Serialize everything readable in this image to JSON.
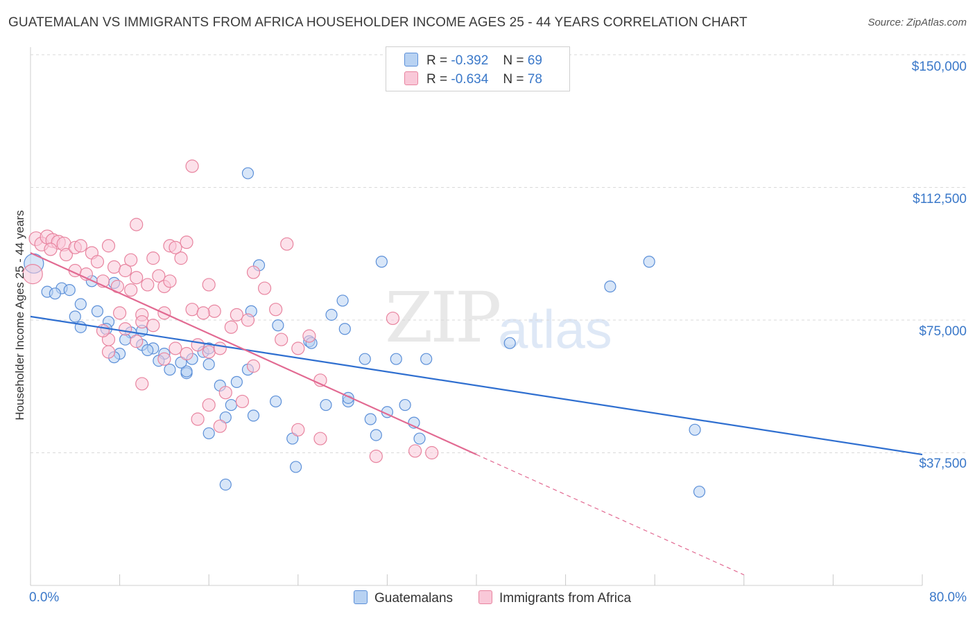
{
  "title": "GUATEMALAN VS IMMIGRANTS FROM AFRICA HOUSEHOLDER INCOME AGES 25 - 44 YEARS CORRELATION CHART",
  "source": "Source: ZipAtlas.com",
  "watermark": {
    "zip": "ZIP",
    "atlas": "atlas"
  },
  "colors": {
    "blue_fill": "#b8d2f2",
    "blue_stroke": "#5b8fd8",
    "blue_line": "#2f6fd0",
    "pink_fill": "#f9c8d8",
    "pink_stroke": "#e8849f",
    "pink_line": "#e26a92",
    "tick_text": "#3a78c9"
  },
  "legend": {
    "rows": [
      {
        "r_label": "R =",
        "r_value": "-0.392",
        "n_label": "N =",
        "n_value": "69"
      },
      {
        "r_label": "R =",
        "r_value": "-0.634",
        "n_label": "N =",
        "n_value": "78"
      }
    ]
  },
  "bottom_legend": {
    "series1": "Guatemalans",
    "series2": "Immigrants from Africa"
  },
  "axis": {
    "x_min_label": "0.0%",
    "x_max_label": "80.0%",
    "y_ticks": [
      "$150,000",
      "$112,500",
      "$75,000",
      "$37,500"
    ],
    "ylabel": "Householder Income Ages 25 - 44 years"
  },
  "chart_data": {
    "type": "scatter",
    "title": "GUATEMALAN VS IMMIGRANTS FROM AFRICA HOUSEHOLDER INCOME AGES 25 - 44 YEARS CORRELATION CHART",
    "xlabel": "",
    "ylabel": "Householder Income Ages 25 - 44 years",
    "xlim": [
      0,
      80
    ],
    "ylim": [
      0,
      154000
    ],
    "y_ticks": [
      37500,
      75000,
      112500,
      150000
    ],
    "series": [
      {
        "name": "Guatemalans",
        "r": -0.392,
        "n": 69,
        "trend": {
          "x": [
            0,
            80
          ],
          "y": [
            76000,
            37000
          ],
          "dashed_from": null
        },
        "points": [
          [
            0.3,
            91000,
            14
          ],
          [
            1.5,
            83000,
            8
          ],
          [
            2.8,
            84000,
            8
          ],
          [
            3.5,
            83500,
            8
          ],
          [
            2.2,
            82500,
            8
          ],
          [
            4.5,
            79500,
            8
          ],
          [
            5.5,
            86000,
            8
          ],
          [
            7.5,
            85500,
            8
          ],
          [
            6,
            77500,
            8
          ],
          [
            4,
            76000,
            8
          ],
          [
            7,
            74500,
            8
          ],
          [
            6.8,
            72500,
            8
          ],
          [
            4.5,
            73000,
            8
          ],
          [
            9,
            71500,
            8
          ],
          [
            8.5,
            69500,
            8
          ],
          [
            10,
            68000,
            8
          ],
          [
            11,
            67000,
            8
          ],
          [
            12,
            65500,
            8
          ],
          [
            10.5,
            66500,
            8
          ],
          [
            8,
            65500,
            8
          ],
          [
            7.5,
            64500,
            8
          ],
          [
            11.5,
            63500,
            8
          ],
          [
            12.5,
            61000,
            8
          ],
          [
            14,
            60000,
            8
          ],
          [
            15.5,
            66000,
            8
          ],
          [
            14.5,
            64000,
            8
          ],
          [
            16,
            62500,
            8
          ],
          [
            17,
            56500,
            8
          ],
          [
            18.5,
            57500,
            8
          ],
          [
            19.5,
            61000,
            8
          ],
          [
            18,
            51000,
            8
          ],
          [
            17.5,
            47500,
            8
          ],
          [
            16,
            43000,
            8
          ],
          [
            20,
            48000,
            8
          ],
          [
            22,
            52000,
            8
          ],
          [
            23.5,
            41500,
            8
          ],
          [
            23.8,
            33500,
            8
          ],
          [
            17.5,
            28500,
            8
          ],
          [
            20.5,
            90500,
            8
          ],
          [
            19.8,
            77500,
            8
          ],
          [
            22.2,
            73500,
            8
          ],
          [
            25,
            69000,
            8
          ],
          [
            25.2,
            68500,
            8
          ],
          [
            27,
            76500,
            8
          ],
          [
            26.5,
            51000,
            8
          ],
          [
            28.5,
            52000,
            8
          ],
          [
            28,
            80500,
            8
          ],
          [
            28.2,
            72500,
            8
          ],
          [
            30,
            64000,
            8
          ],
          [
            30.5,
            47000,
            8
          ],
          [
            31,
            42500,
            8
          ],
          [
            32,
            49000,
            8
          ],
          [
            31.5,
            91500,
            8
          ],
          [
            32.8,
            64000,
            8
          ],
          [
            33.6,
            51000,
            8
          ],
          [
            34.4,
            46000,
            8
          ],
          [
            34.9,
            41500,
            8
          ],
          [
            35.5,
            64000,
            8
          ],
          [
            28.5,
            53000,
            8
          ],
          [
            19.5,
            116500,
            8
          ],
          [
            43,
            68500,
            8
          ],
          [
            52,
            84500,
            8
          ],
          [
            55.5,
            91500,
            8
          ],
          [
            59.6,
            44000,
            8
          ],
          [
            60,
            26500,
            8
          ],
          [
            10,
            72000,
            8
          ],
          [
            14,
            60500,
            8
          ],
          [
            16,
            67000,
            8
          ],
          [
            13.5,
            63000,
            8
          ]
        ]
      },
      {
        "name": "Immigrants from Africa",
        "r": -0.634,
        "n": 78,
        "trend": {
          "x": [
            0,
            40
          ],
          "y": [
            94000,
            37000
          ],
          "dashed_to": {
            "x": 64,
            "y": 3000
          }
        },
        "points": [
          [
            0.2,
            88000,
            14
          ],
          [
            0.5,
            98000,
            10
          ],
          [
            1,
            96500,
            10
          ],
          [
            1.5,
            98500,
            10
          ],
          [
            2,
            97500,
            10
          ],
          [
            2.5,
            97000,
            10
          ],
          [
            3,
            96500,
            10
          ],
          [
            1.8,
            95000,
            9
          ],
          [
            3.2,
            93500,
            9
          ],
          [
            4,
            95500,
            9
          ],
          [
            4.5,
            96000,
            9
          ],
          [
            5.5,
            94000,
            9
          ],
          [
            4,
            89000,
            9
          ],
          [
            5,
            88000,
            9
          ],
          [
            6,
            91500,
            9
          ],
          [
            7,
            96000,
            9
          ],
          [
            7.5,
            90000,
            9
          ],
          [
            8.5,
            89000,
            9
          ],
          [
            6.5,
            86000,
            9
          ],
          [
            7.8,
            84500,
            9
          ],
          [
            9,
            83500,
            9
          ],
          [
            9.5,
            87000,
            9
          ],
          [
            10.5,
            85000,
            9
          ],
          [
            11.5,
            87500,
            9
          ],
          [
            12,
            84500,
            9
          ],
          [
            12.5,
            86000,
            9
          ],
          [
            9,
            92000,
            9
          ],
          [
            11,
            92500,
            9
          ],
          [
            12.5,
            96000,
            9
          ],
          [
            13.5,
            92500,
            9
          ],
          [
            14,
            97000,
            9
          ],
          [
            13,
            95500,
            9
          ],
          [
            16,
            85000,
            9
          ],
          [
            14.5,
            78000,
            9
          ],
          [
            16.5,
            77500,
            9
          ],
          [
            15.5,
            77000,
            9
          ],
          [
            12,
            77000,
            9
          ],
          [
            10,
            76500,
            9
          ],
          [
            8,
            77000,
            9
          ],
          [
            8.5,
            72500,
            9
          ],
          [
            7,
            69500,
            9
          ],
          [
            6.5,
            72000,
            9
          ],
          [
            9.5,
            69000,
            9
          ],
          [
            10,
            74500,
            9
          ],
          [
            11,
            73500,
            9
          ],
          [
            13,
            67000,
            9
          ],
          [
            14,
            65500,
            9
          ],
          [
            15,
            68000,
            9
          ],
          [
            16,
            66000,
            9
          ],
          [
            17,
            67000,
            9
          ],
          [
            18,
            73000,
            9
          ],
          [
            18.5,
            76500,
            9
          ],
          [
            19.5,
            75000,
            9
          ],
          [
            20,
            88500,
            9
          ],
          [
            21,
            84000,
            9
          ],
          [
            22,
            78000,
            9
          ],
          [
            23,
            96500,
            9
          ],
          [
            22.5,
            69500,
            9
          ],
          [
            24,
            67000,
            9
          ],
          [
            25,
            70500,
            9
          ],
          [
            26,
            58000,
            9
          ],
          [
            20,
            62000,
            9
          ],
          [
            19,
            52000,
            9
          ],
          [
            17.5,
            54500,
            9
          ],
          [
            16,
            51000,
            9
          ],
          [
            15,
            47000,
            9
          ],
          [
            17,
            45000,
            9
          ],
          [
            24,
            44000,
            9
          ],
          [
            26,
            41500,
            9
          ],
          [
            31,
            36500,
            9
          ],
          [
            32.5,
            75500,
            9
          ],
          [
            34.5,
            38000,
            9
          ],
          [
            36,
            37500,
            9
          ],
          [
            14.5,
            118500,
            9
          ],
          [
            9.5,
            102000,
            9
          ],
          [
            7,
            66000,
            9
          ],
          [
            10,
            57000,
            9
          ],
          [
            12,
            64000,
            9
          ]
        ]
      }
    ]
  }
}
